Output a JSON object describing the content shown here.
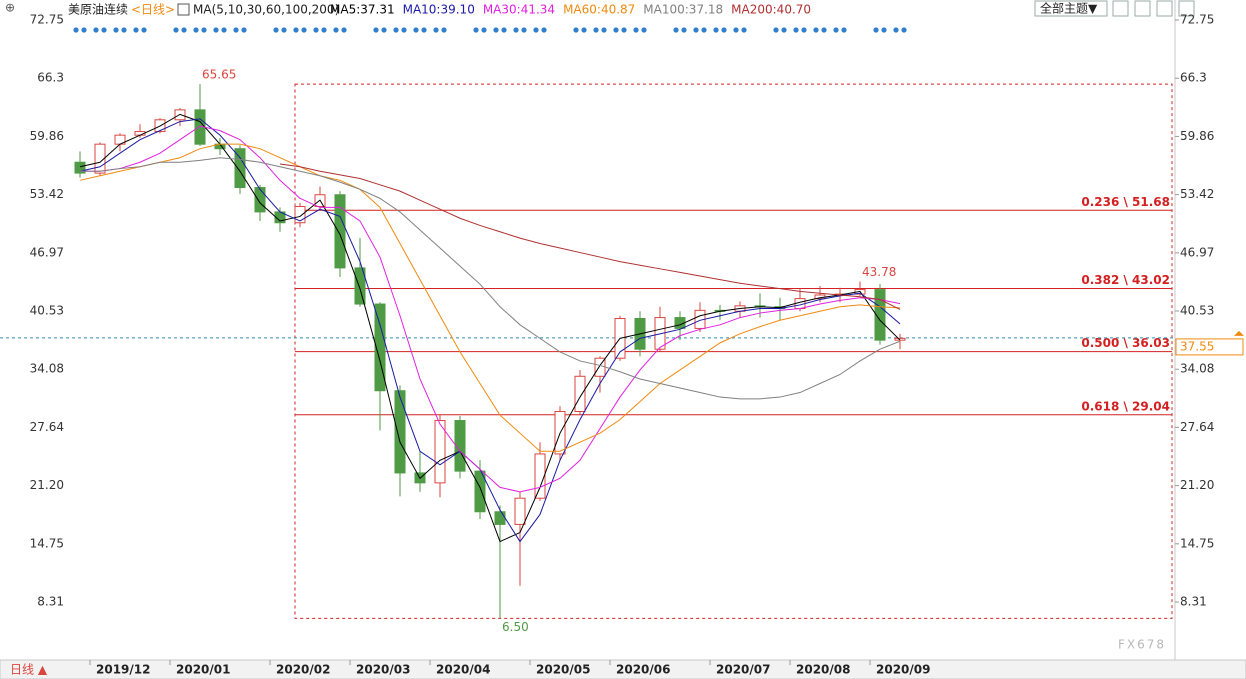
{
  "chart_data": {
    "type": "candlestick",
    "title": "美原油连续",
    "period": "<日线>",
    "indicator": "MA(5,10,30,60,100,200)",
    "theme_button": "全部主题▼",
    "period_button": "日线 ▲",
    "watermark": "FX678",
    "categories": [
      null,
      "2019/12",
      null,
      null,
      null,
      "2020/01",
      null,
      null,
      null,
      null,
      "2020/02",
      null,
      null,
      null,
      "2020/03",
      null,
      null,
      null,
      "2020/04",
      null,
      null,
      null,
      null,
      "2020/05",
      null,
      null,
      null,
      "2020/06",
      null,
      null,
      null,
      null,
      "2020/07",
      null,
      null,
      null,
      "2020/08",
      null,
      null,
      null,
      "2020/09",
      null
    ],
    "open": [
      57.0,
      55.8,
      59.0,
      60.0,
      60.4,
      61.7,
      62.8,
      59.0,
      58.5,
      54.2,
      51.5,
      50.3,
      52.1,
      53.4,
      45.3,
      41.3,
      31.7,
      22.6,
      21.5,
      28.4,
      22.8,
      18.3,
      16.9,
      19.8,
      24.7,
      29.4,
      33.3,
      35.3,
      39.7,
      36.3,
      39.8,
      38.6,
      40.6,
      40.5,
      41.1,
      41.0,
      40.8,
      41.9,
      42.3,
      42.4,
      42.9,
      37.3
    ],
    "high": [
      58.2,
      59.2,
      60.2,
      61.2,
      61.9,
      63.0,
      65.65,
      59.7,
      58.9,
      54.5,
      52.0,
      52.5,
      54.3,
      53.8,
      48.6,
      41.5,
      32.3,
      25.0,
      29.0,
      28.9,
      24.0,
      19.0,
      20.5,
      26.0,
      30.0,
      34.0,
      35.5,
      40.0,
      40.5,
      41.0,
      40.5,
      41.5,
      41.2,
      41.6,
      42.5,
      42.0,
      43.0,
      43.3,
      43.1,
      43.78,
      43.5,
      38.0
    ],
    "low": [
      55.3,
      55.5,
      58.2,
      59.7,
      60.2,
      61.0,
      58.8,
      57.8,
      53.5,
      50.5,
      49.3,
      49.8,
      51.8,
      44.3,
      41.0,
      27.3,
      20.0,
      20.5,
      19.9,
      22.0,
      17.5,
      6.5,
      10.1,
      19.5,
      24.0,
      29.0,
      31.5,
      35.0,
      35.5,
      36.0,
      37.3,
      38.2,
      39.5,
      39.8,
      39.8,
      39.5,
      40.5,
      41.5,
      41.5,
      42.2,
      36.8,
      36.3
    ],
    "close": [
      55.8,
      59.0,
      60.0,
      60.4,
      61.7,
      62.8,
      59.0,
      58.5,
      54.2,
      51.5,
      50.3,
      52.1,
      53.4,
      45.3,
      41.3,
      31.7,
      22.6,
      21.5,
      28.4,
      22.8,
      18.3,
      16.9,
      19.8,
      24.7,
      29.4,
      33.3,
      35.3,
      39.7,
      36.3,
      39.8,
      38.6,
      40.6,
      40.5,
      41.1,
      41.0,
      40.8,
      41.9,
      42.3,
      42.4,
      42.9,
      37.3,
      37.5
    ],
    "up_color": "#d9463e",
    "down_color": "#4f9a45",
    "series": [
      {
        "name": "MA5:37.31",
        "color": "#000000",
        "values": [
          56.5,
          57,
          59,
          60,
          61,
          62.3,
          61.5,
          59,
          56,
          52.5,
          50.5,
          51,
          52.8,
          49,
          43,
          35,
          26,
          22,
          24,
          25,
          21,
          15,
          16,
          21,
          27,
          31,
          34.5,
          37.5,
          38,
          38.5,
          39,
          40,
          40.5,
          40.8,
          41,
          40.9,
          41.5,
          42,
          42.3,
          42.7,
          39.5,
          37.31
        ]
      },
      {
        "name": "MA10:39.10",
        "color": "#1a1aa6",
        "values": [
          56,
          56.5,
          58,
          59.5,
          60.5,
          61.5,
          61.8,
          60,
          57.5,
          54,
          51.5,
          50.5,
          51.8,
          51,
          46,
          39,
          31,
          25,
          23.5,
          25,
          23,
          18.5,
          15,
          18,
          24,
          28.5,
          32.5,
          36,
          37.5,
          38,
          38.5,
          39.5,
          40,
          40.5,
          40.8,
          40.8,
          41.2,
          41.8,
          42.2,
          42.5,
          41,
          39.1
        ]
      },
      {
        "name": "MA30:41.34",
        "color": "#e020e0",
        "values": [
          56,
          56,
          56.3,
          57,
          58,
          59.5,
          61,
          60.5,
          59.5,
          57.5,
          55,
          53,
          52,
          52,
          50.5,
          46.5,
          40,
          33,
          28,
          25,
          23,
          21,
          20.5,
          21,
          22,
          24,
          27.5,
          31,
          34,
          36.5,
          37.8,
          38.5,
          39,
          39.8,
          40.3,
          40.6,
          40.8,
          41.3,
          41.7,
          42,
          41.8,
          41.34
        ]
      },
      {
        "name": "MA60:40.87",
        "color": "#f08a10",
        "values": [
          55,
          55.5,
          56,
          56.5,
          57,
          57.5,
          58.5,
          59,
          59,
          58.5,
          57.5,
          56.5,
          55.5,
          55,
          54,
          52,
          48,
          44,
          40,
          36,
          32.5,
          29,
          27,
          25,
          25,
          26,
          27,
          28.5,
          30.5,
          32.5,
          34,
          35.5,
          37,
          38,
          38.8,
          39.5,
          40,
          40.5,
          41,
          41.2,
          41,
          40.87
        ]
      },
      {
        "name": "MA100:37.18",
        "color": "#808080",
        "values": [
          56,
          56,
          56.3,
          56.5,
          57,
          57,
          57.2,
          57.5,
          57.3,
          57,
          56.5,
          56,
          55.5,
          54.8,
          54,
          53,
          51.5,
          49.5,
          47.5,
          45.5,
          43.5,
          41,
          39,
          37.5,
          36,
          35,
          34.5,
          33.8,
          33,
          32.5,
          32,
          31.5,
          31,
          30.8,
          30.8,
          31,
          31.5,
          32.5,
          33.5,
          35,
          36.3,
          37.18
        ]
      },
      {
        "name": "MA200:40.70",
        "color": "#b03030",
        "values": [
          null,
          null,
          null,
          null,
          null,
          null,
          null,
          null,
          null,
          null,
          56.8,
          56.5,
          56,
          55.6,
          55.2,
          54.5,
          53.8,
          52.8,
          51.8,
          50.8,
          50,
          49.3,
          48.6,
          48,
          47.5,
          47,
          46.5,
          46,
          45.6,
          45.2,
          44.8,
          44.4,
          44,
          43.6,
          43.3,
          43,
          42.7,
          42.5,
          42.3,
          42.1,
          41.8,
          40.7
        ]
      }
    ],
    "ylim": [
      2.44,
      74.41
    ],
    "yticks": [
      8.31,
      14.75,
      {
        "value": 21.2,
        "label": "21.20"
      },
      27.64,
      34.08,
      40.53,
      46.97,
      53.42,
      59.86,
      66.3,
      72.75
    ],
    "fib_levels": [
      {
        "value": 51.68,
        "label": "0.236 \\ 51.68"
      },
      {
        "value": 43.02,
        "label": "0.382 \\ 43.02"
      },
      {
        "value": 36.03,
        "label": "0.500 \\ 36.03"
      },
      {
        "value": 29.04,
        "label": "0.618 \\ 29.04"
      }
    ],
    "fib_color": "#d42020",
    "annotations": [
      {
        "label": "65.65",
        "value": 65.65,
        "color": "#d9463e"
      },
      {
        "label": "43.78",
        "value": 43.78,
        "color": "#d9463e"
      },
      {
        "label": "6.50",
        "value": 6.5,
        "color": "#4f9a45"
      }
    ],
    "last_price": 37.55
  }
}
